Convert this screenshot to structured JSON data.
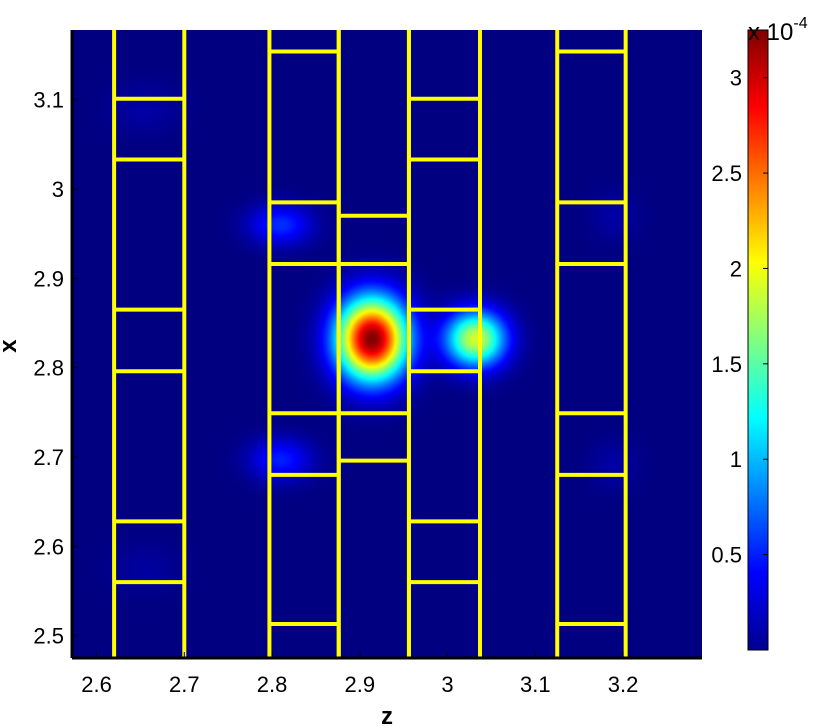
{
  "chart_data": {
    "type": "heatmap",
    "title": "",
    "xlabel": "z",
    "ylabel": "x",
    "xlim": [
      2.572,
      3.29
    ],
    "ylim": [
      2.475,
      3.178
    ],
    "xticks": [
      {
        "value": 2.6,
        "label": "2.6"
      },
      {
        "value": 2.7,
        "label": "2.7"
      },
      {
        "value": 2.8,
        "label": "2.8"
      },
      {
        "value": 2.9,
        "label": "2.9"
      },
      {
        "value": 3.0,
        "label": "3"
      },
      {
        "value": 3.1,
        "label": "3.1"
      },
      {
        "value": 3.2,
        "label": "3.2"
      }
    ],
    "yticks": [
      {
        "value": 2.5,
        "label": "2.5"
      },
      {
        "value": 2.6,
        "label": "2.6"
      },
      {
        "value": 2.7,
        "label": "2.7"
      },
      {
        "value": 2.8,
        "label": "2.8"
      },
      {
        "value": 2.9,
        "label": "2.9"
      },
      {
        "value": 3.0,
        "label": "3"
      },
      {
        "value": 3.1,
        "label": "3.1"
      }
    ],
    "colormap": "jet",
    "background_color": "#00008f",
    "overlay_color": "#ffff00",
    "colorbar": {
      "min": 0,
      "max": 3.25,
      "multiplier_base": "x 10",
      "multiplier_exponent": "-4",
      "ticks": [
        {
          "value": 0.5,
          "label": "0.5"
        },
        {
          "value": 1.0,
          "label": "1"
        },
        {
          "value": 1.5,
          "label": "1.5"
        },
        {
          "value": 2.0,
          "label": "2"
        },
        {
          "value": 2.5,
          "label": "2.5"
        },
        {
          "value": 3.0,
          "label": "3"
        }
      ]
    },
    "peaks": [
      {
        "z": 2.914,
        "x": 2.832,
        "sigma_z": 0.028,
        "sigma_x": 0.032,
        "value": 3.25
      },
      {
        "z": 3.032,
        "x": 2.832,
        "sigma_z": 0.024,
        "sigma_x": 0.022,
        "value": 1.9
      },
      {
        "z": 2.81,
        "x": 2.96,
        "sigma_z": 0.025,
        "sigma_x": 0.016,
        "value": 0.55
      },
      {
        "z": 2.81,
        "x": 2.697,
        "sigma_z": 0.025,
        "sigma_x": 0.017,
        "value": 0.5
      },
      {
        "z": 2.655,
        "x": 3.09,
        "sigma_z": 0.03,
        "sigma_x": 0.02,
        "value": 0.12
      },
      {
        "z": 2.655,
        "x": 2.575,
        "sigma_z": 0.03,
        "sigma_x": 0.02,
        "value": 0.1
      },
      {
        "z": 3.19,
        "x": 2.97,
        "sigma_z": 0.02,
        "sigma_x": 0.02,
        "value": 0.12
      },
      {
        "z": 3.19,
        "x": 2.69,
        "sigma_z": 0.02,
        "sigma_x": 0.02,
        "value": 0.12
      }
    ],
    "overlay_columns": [
      {
        "z_left": 2.62,
        "z_right": 2.7,
        "x_breaks": [
          2.56,
          2.628,
          2.796,
          2.865,
          3.033,
          3.101
        ]
      },
      {
        "z_left": 2.797,
        "z_right": 2.876,
        "x_breaks": [
          2.513,
          2.68,
          2.749,
          2.916,
          2.985,
          3.154
        ]
      },
      {
        "z_left": 2.876,
        "z_right": 2.956,
        "x_breaks": [
          2.696,
          2.749,
          2.916,
          2.97
        ]
      },
      {
        "z_left": 2.956,
        "z_right": 3.037,
        "x_breaks": [
          2.56,
          2.628,
          2.796,
          2.865,
          3.033,
          3.101
        ]
      },
      {
        "z_left": 3.125,
        "z_right": 3.203,
        "x_breaks": [
          2.513,
          2.68,
          2.749,
          2.916,
          2.985,
          3.154
        ]
      }
    ]
  }
}
